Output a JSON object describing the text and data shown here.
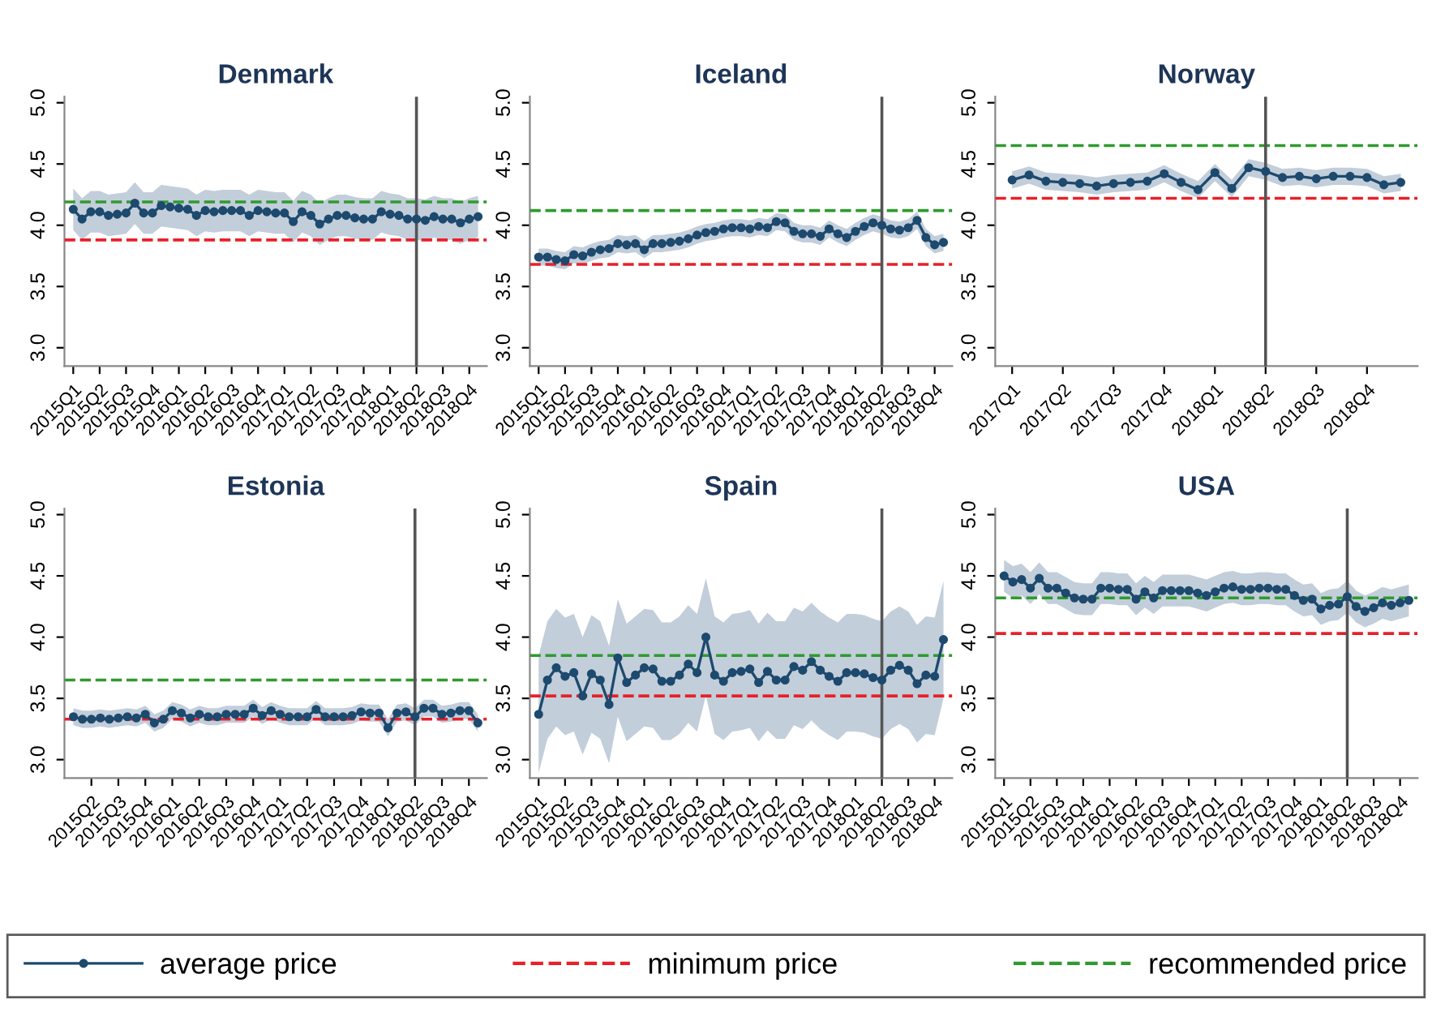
{
  "chart_data": [
    {
      "type": "line",
      "title": "Denmark",
      "marker": "circle",
      "line_style": "solid",
      "legend": "bottom",
      "ylim": [
        2.85,
        5.05
      ],
      "categories": [
        "2015Q1",
        null,
        null,
        "2015Q2",
        null,
        null,
        "2015Q3",
        null,
        null,
        "2015Q4",
        null,
        null,
        "2016Q1",
        null,
        null,
        "2016Q2",
        null,
        null,
        "2016Q3",
        null,
        null,
        "2016Q4",
        null,
        null,
        "2017Q1",
        null,
        null,
        "2017Q2",
        null,
        null,
        "2017Q3",
        null,
        null,
        "2017Q4",
        null,
        null,
        "2018Q1",
        null,
        null,
        "2018Q2",
        null,
        null,
        "2018Q3",
        null,
        null,
        "2018Q4",
        null
      ],
      "yticks": [
        {
          "value": 3,
          "label": "3.0"
        },
        {
          "value": 3.5,
          "label": "3.5"
        },
        {
          "value": 4,
          "label": "4.0"
        },
        {
          "value": 4.5,
          "label": "4.5"
        },
        {
          "value": 5,
          "label": "5.0"
        }
      ],
      "ref_lines": [
        {
          "axis": "y",
          "value": 3.88,
          "label": "minimum price",
          "color": "#e8202a",
          "line_style": "dashed"
        },
        {
          "axis": "y",
          "value": 4.19,
          "label": "recommended price",
          "color": "#2f9a2f",
          "line_style": "dashed"
        },
        {
          "axis": "x",
          "value": "2018Q2",
          "color": "#555555",
          "line_style": "solid"
        }
      ],
      "series": [
        {
          "name": "average price",
          "color": "#1d4a6e",
          "values": [
            4.13,
            4.05,
            4.11,
            4.11,
            4.08,
            4.09,
            4.1,
            4.18,
            4.1,
            4.1,
            4.16,
            4.15,
            4.14,
            4.13,
            4.08,
            4.12,
            4.11,
            4.12,
            4.12,
            4.12,
            4.08,
            4.12,
            4.11,
            4.1,
            4.1,
            4.03,
            4.11,
            4.08,
            4.01,
            4.05,
            4.08,
            4.08,
            4.06,
            4.05,
            4.05,
            4.11,
            4.09,
            4.08,
            4.05,
            4.05,
            4.04,
            4.07,
            4.05,
            4.05,
            4.02,
            4.05,
            4.07
          ],
          "lower": [
            3.96,
            3.88,
            3.94,
            3.94,
            3.91,
            3.92,
            3.93,
            4.01,
            3.93,
            3.93,
            3.99,
            3.98,
            3.97,
            3.96,
            3.91,
            3.95,
            3.94,
            3.95,
            3.95,
            3.95,
            3.91,
            3.95,
            3.94,
            3.93,
            3.93,
            3.86,
            3.94,
            3.91,
            3.84,
            3.88,
            3.91,
            3.91,
            3.89,
            3.88,
            3.88,
            3.94,
            3.92,
            3.91,
            3.88,
            3.88,
            3.87,
            3.9,
            3.88,
            3.88,
            3.85,
            3.88,
            3.9
          ],
          "upper": [
            4.3,
            4.22,
            4.28,
            4.28,
            4.25,
            4.26,
            4.27,
            4.35,
            4.27,
            4.27,
            4.33,
            4.32,
            4.31,
            4.3,
            4.25,
            4.29,
            4.28,
            4.29,
            4.29,
            4.29,
            4.25,
            4.29,
            4.28,
            4.27,
            4.27,
            4.2,
            4.28,
            4.25,
            4.18,
            4.22,
            4.25,
            4.25,
            4.23,
            4.22,
            4.22,
            4.28,
            4.26,
            4.25,
            4.22,
            4.22,
            4.21,
            4.24,
            4.22,
            4.22,
            4.19,
            4.22,
            4.24
          ]
        }
      ]
    },
    {
      "type": "line",
      "title": "Iceland",
      "marker": "circle",
      "line_style": "solid",
      "ylim": [
        2.85,
        5.05
      ],
      "categories": [
        "2015Q1",
        null,
        null,
        "2015Q2",
        null,
        null,
        "2015Q3",
        null,
        null,
        "2015Q4",
        null,
        null,
        "2016Q1",
        null,
        null,
        "2016Q2",
        null,
        null,
        "2016Q3",
        null,
        null,
        "2016Q4",
        null,
        null,
        "2017Q1",
        null,
        null,
        "2017Q2",
        null,
        null,
        "2017Q3",
        null,
        null,
        "2017Q4",
        null,
        null,
        "2018Q1",
        null,
        null,
        "2018Q2",
        null,
        null,
        "2018Q3",
        null,
        null,
        "2018Q4",
        null
      ],
      "yticks": [
        {
          "value": 3,
          "label": "3.0"
        },
        {
          "value": 3.5,
          "label": "3.5"
        },
        {
          "value": 4,
          "label": "4.0"
        },
        {
          "value": 4.5,
          "label": "4.5"
        },
        {
          "value": 5,
          "label": "5.0"
        }
      ],
      "ref_lines": [
        {
          "axis": "y",
          "value": 3.68,
          "color": "#e8202a",
          "line_style": "dashed"
        },
        {
          "axis": "y",
          "value": 4.12,
          "color": "#2f9a2f",
          "line_style": "dashed"
        },
        {
          "axis": "x",
          "value": "2018Q2",
          "color": "#555555",
          "line_style": "solid"
        }
      ],
      "series": [
        {
          "color": "#1d4a6e",
          "values": [
            3.74,
            3.74,
            3.72,
            3.71,
            3.76,
            3.75,
            3.78,
            3.8,
            3.81,
            3.85,
            3.84,
            3.85,
            3.8,
            3.85,
            3.85,
            3.86,
            3.87,
            3.89,
            3.92,
            3.94,
            3.95,
            3.97,
            3.98,
            3.98,
            3.97,
            3.99,
            3.98,
            4.03,
            4.02,
            3.95,
            3.93,
            3.93,
            3.91,
            3.97,
            3.93,
            3.9,
            3.95,
            3.99,
            4.02,
            4.0,
            3.97,
            3.96,
            3.98,
            4.04,
            3.9,
            3.84,
            3.86
          ],
          "lower": [
            3.67,
            3.67,
            3.65,
            3.64,
            3.69,
            3.68,
            3.71,
            3.73,
            3.74,
            3.78,
            3.77,
            3.78,
            3.73,
            3.78,
            3.78,
            3.79,
            3.8,
            3.82,
            3.85,
            3.87,
            3.88,
            3.9,
            3.91,
            3.91,
            3.9,
            3.92,
            3.91,
            3.96,
            3.95,
            3.88,
            3.86,
            3.86,
            3.84,
            3.9,
            3.86,
            3.83,
            3.88,
            3.92,
            3.95,
            3.93,
            3.9,
            3.89,
            3.91,
            3.97,
            3.83,
            3.77,
            3.79
          ],
          "upper": [
            3.81,
            3.81,
            3.79,
            3.78,
            3.83,
            3.82,
            3.85,
            3.87,
            3.88,
            3.92,
            3.91,
            3.92,
            3.87,
            3.92,
            3.92,
            3.93,
            3.94,
            3.96,
            3.99,
            4.01,
            4.02,
            4.04,
            4.05,
            4.05,
            4.04,
            4.06,
            4.05,
            4.1,
            4.09,
            4.02,
            4.0,
            4.0,
            3.98,
            4.04,
            4.0,
            3.97,
            4.02,
            4.06,
            4.09,
            4.07,
            4.04,
            4.03,
            4.05,
            4.11,
            3.97,
            3.91,
            3.93
          ]
        }
      ]
    },
    {
      "type": "line",
      "title": "Norway",
      "marker": "circle",
      "line_style": "solid",
      "ylim": [
        2.85,
        5.05
      ],
      "categories": [
        "2017Q1",
        null,
        null,
        "2017Q2",
        null,
        null,
        "2017Q3",
        null,
        null,
        "2017Q4",
        null,
        null,
        "2018Q1",
        null,
        null,
        "2018Q2",
        null,
        null,
        "2018Q3",
        null,
        null,
        "2018Q4",
        null,
        null
      ],
      "yticks": [
        {
          "value": 3,
          "label": "3.0"
        },
        {
          "value": 3.5,
          "label": "3.5"
        },
        {
          "value": 4,
          "label": "4.0"
        },
        {
          "value": 4.5,
          "label": "4.5"
        },
        {
          "value": 5,
          "label": "5.0"
        }
      ],
      "ref_lines": [
        {
          "axis": "y",
          "value": 4.22,
          "color": "#e8202a",
          "line_style": "dashed"
        },
        {
          "axis": "y",
          "value": 4.65,
          "color": "#2f9a2f",
          "line_style": "dashed"
        },
        {
          "axis": "x",
          "value": "2018Q2",
          "color": "#555555",
          "line_style": "solid"
        }
      ],
      "series": [
        {
          "color": "#1d4a6e",
          "values": [
            4.37,
            4.41,
            4.36,
            4.35,
            4.34,
            4.32,
            4.34,
            4.35,
            4.36,
            4.42,
            4.35,
            4.29,
            4.43,
            4.3,
            4.47,
            4.44,
            4.39,
            4.4,
            4.38,
            4.4,
            4.4,
            4.39,
            4.33,
            4.35
          ],
          "lower": [
            4.3,
            4.34,
            4.29,
            4.28,
            4.27,
            4.25,
            4.27,
            4.28,
            4.29,
            4.35,
            4.28,
            4.22,
            4.36,
            4.23,
            4.4,
            4.37,
            4.32,
            4.33,
            4.31,
            4.33,
            4.33,
            4.32,
            4.26,
            4.28
          ],
          "upper": [
            4.44,
            4.48,
            4.43,
            4.42,
            4.41,
            4.39,
            4.41,
            4.42,
            4.43,
            4.49,
            4.42,
            4.36,
            4.5,
            4.37,
            4.54,
            4.51,
            4.46,
            4.47,
            4.45,
            4.47,
            4.47,
            4.46,
            4.4,
            4.42
          ]
        }
      ]
    },
    {
      "type": "line",
      "title": "Estonia",
      "marker": "circle",
      "line_style": "solid",
      "ylim": [
        2.85,
        5.05
      ],
      "categories": [
        null,
        null,
        "2015Q2",
        null,
        null,
        "2015Q3",
        null,
        null,
        "2015Q4",
        null,
        null,
        "2016Q1",
        null,
        null,
        "2016Q2",
        null,
        null,
        "2016Q3",
        null,
        null,
        "2016Q4",
        null,
        null,
        "2017Q1",
        null,
        null,
        "2017Q2",
        null,
        null,
        "2017Q3",
        null,
        null,
        "2017Q4",
        null,
        null,
        "2018Q1",
        null,
        null,
        "2018Q2",
        null,
        null,
        "2018Q3",
        null,
        null,
        "2018Q4",
        null
      ],
      "yticks": [
        {
          "value": 3,
          "label": "3.0"
        },
        {
          "value": 3.5,
          "label": "3.5"
        },
        {
          "value": 4,
          "label": "4.0"
        },
        {
          "value": 4.5,
          "label": "4.5"
        },
        {
          "value": 5,
          "label": "5.0"
        }
      ],
      "ref_lines": [
        {
          "axis": "y",
          "value": 3.33,
          "color": "#e8202a",
          "line_style": "dashed"
        },
        {
          "axis": "y",
          "value": 3.65,
          "color": "#2f9a2f",
          "line_style": "dashed"
        },
        {
          "axis": "x",
          "value": "2018Q2",
          "color": "#555555",
          "line_style": "solid"
        }
      ],
      "series": [
        {
          "color": "#1d4a6e",
          "values": [
            3.35,
            3.33,
            3.33,
            3.34,
            3.33,
            3.34,
            3.35,
            3.34,
            3.37,
            3.3,
            3.33,
            3.4,
            3.38,
            3.34,
            3.37,
            3.35,
            3.35,
            3.37,
            3.37,
            3.37,
            3.42,
            3.36,
            3.4,
            3.37,
            3.35,
            3.35,
            3.35,
            3.41,
            3.35,
            3.35,
            3.35,
            3.36,
            3.39,
            3.38,
            3.38,
            3.26,
            3.38,
            3.39,
            3.35,
            3.42,
            3.42,
            3.37,
            3.38,
            3.4,
            3.4,
            3.3
          ],
          "lower": [
            3.28,
            3.26,
            3.26,
            3.27,
            3.26,
            3.27,
            3.28,
            3.27,
            3.3,
            3.23,
            3.26,
            3.33,
            3.31,
            3.27,
            3.3,
            3.28,
            3.28,
            3.3,
            3.3,
            3.3,
            3.35,
            3.29,
            3.33,
            3.3,
            3.28,
            3.28,
            3.28,
            3.34,
            3.28,
            3.28,
            3.28,
            3.29,
            3.32,
            3.31,
            3.31,
            3.19,
            3.31,
            3.32,
            3.28,
            3.35,
            3.35,
            3.3,
            3.31,
            3.33,
            3.33,
            3.23
          ],
          "upper": [
            3.42,
            3.4,
            3.4,
            3.41,
            3.4,
            3.41,
            3.42,
            3.41,
            3.44,
            3.37,
            3.4,
            3.47,
            3.45,
            3.41,
            3.44,
            3.42,
            3.42,
            3.44,
            3.44,
            3.44,
            3.49,
            3.43,
            3.47,
            3.44,
            3.42,
            3.42,
            3.42,
            3.48,
            3.42,
            3.42,
            3.42,
            3.43,
            3.46,
            3.45,
            3.45,
            3.33,
            3.45,
            3.46,
            3.42,
            3.49,
            3.49,
            3.44,
            3.45,
            3.47,
            3.47,
            3.37
          ]
        }
      ]
    },
    {
      "type": "line",
      "title": "Spain",
      "marker": "circle",
      "line_style": "solid",
      "ylim": [
        2.85,
        5.05
      ],
      "categories": [
        "2015Q1",
        null,
        null,
        "2015Q2",
        null,
        null,
        "2015Q3",
        null,
        null,
        "2015Q4",
        null,
        null,
        "2016Q1",
        null,
        null,
        "2016Q2",
        null,
        null,
        "2016Q3",
        null,
        null,
        "2016Q4",
        null,
        null,
        "2017Q1",
        null,
        null,
        "2017Q2",
        null,
        null,
        "2017Q3",
        null,
        null,
        "2017Q4",
        null,
        null,
        "2018Q1",
        null,
        null,
        "2018Q2",
        null,
        null,
        "2018Q3",
        null,
        null,
        "2018Q4",
        null
      ],
      "yticks": [
        {
          "value": 3,
          "label": "3.0"
        },
        {
          "value": 3.5,
          "label": "3.5"
        },
        {
          "value": 4,
          "label": "4.0"
        },
        {
          "value": 4.5,
          "label": "4.5"
        },
        {
          "value": 5,
          "label": "5.0"
        }
      ],
      "ref_lines": [
        {
          "axis": "y",
          "value": 3.52,
          "color": "#e8202a",
          "line_style": "dashed"
        },
        {
          "axis": "y",
          "value": 3.85,
          "color": "#2f9a2f",
          "line_style": "dashed"
        },
        {
          "axis": "x",
          "value": "2018Q2",
          "color": "#555555",
          "line_style": "solid"
        }
      ],
      "series": [
        {
          "color": "#1d4a6e",
          "values": [
            3.37,
            3.65,
            3.75,
            3.68,
            3.71,
            3.52,
            3.7,
            3.65,
            3.45,
            3.83,
            3.63,
            3.69,
            3.75,
            3.74,
            3.64,
            3.64,
            3.69,
            3.78,
            3.71,
            4.0,
            3.69,
            3.64,
            3.71,
            3.72,
            3.74,
            3.63,
            3.72,
            3.65,
            3.65,
            3.76,
            3.73,
            3.8,
            3.73,
            3.68,
            3.64,
            3.71,
            3.71,
            3.7,
            3.67,
            3.65,
            3.73,
            3.77,
            3.73,
            3.62,
            3.69,
            3.68,
            3.98
          ],
          "lower": [
            2.89,
            3.17,
            3.27,
            3.2,
            3.23,
            3.04,
            3.22,
            3.17,
            2.97,
            3.35,
            3.15,
            3.21,
            3.27,
            3.26,
            3.16,
            3.16,
            3.21,
            3.3,
            3.23,
            3.52,
            3.21,
            3.16,
            3.23,
            3.24,
            3.26,
            3.15,
            3.24,
            3.17,
            3.17,
            3.28,
            3.25,
            3.32,
            3.25,
            3.2,
            3.16,
            3.23,
            3.23,
            3.22,
            3.19,
            3.17,
            3.25,
            3.29,
            3.25,
            3.14,
            3.21,
            3.2,
            3.5
          ],
          "upper": [
            3.85,
            4.13,
            4.23,
            4.16,
            4.19,
            4.0,
            4.18,
            4.13,
            3.93,
            4.31,
            4.11,
            4.17,
            4.23,
            4.22,
            4.12,
            4.12,
            4.17,
            4.26,
            4.19,
            4.48,
            4.17,
            4.12,
            4.19,
            4.2,
            4.22,
            4.11,
            4.2,
            4.13,
            4.13,
            4.24,
            4.21,
            4.28,
            4.21,
            4.16,
            4.12,
            4.19,
            4.19,
            4.18,
            4.15,
            4.13,
            4.21,
            4.25,
            4.21,
            4.1,
            4.17,
            4.16,
            4.46
          ]
        }
      ]
    },
    {
      "type": "line",
      "title": "USA",
      "marker": "circle",
      "line_style": "solid",
      "ylim": [
        2.85,
        5.05
      ],
      "categories": [
        "2015Q1",
        null,
        null,
        "2015Q2",
        null,
        null,
        "2015Q3",
        null,
        null,
        "2015Q4",
        null,
        null,
        "2016Q1",
        null,
        null,
        "2016Q2",
        null,
        null,
        "2016Q3",
        null,
        null,
        "2016Q4",
        null,
        null,
        "2017Q1",
        null,
        null,
        "2017Q2",
        null,
        null,
        "2017Q3",
        null,
        null,
        "2017Q4",
        null,
        null,
        "2018Q1",
        null,
        null,
        "2018Q2",
        null,
        null,
        "2018Q3",
        null,
        null,
        "2018Q4",
        null
      ],
      "yticks": [
        {
          "value": 3,
          "label": "3.0"
        },
        {
          "value": 3.5,
          "label": "3.5"
        },
        {
          "value": 4,
          "label": "4.0"
        },
        {
          "value": 4.5,
          "label": "4.5"
        },
        {
          "value": 5,
          "label": "5.0"
        }
      ],
      "ref_lines": [
        {
          "axis": "y",
          "value": 4.03,
          "color": "#e8202a",
          "line_style": "dashed"
        },
        {
          "axis": "y",
          "value": 4.32,
          "color": "#2f9a2f",
          "line_style": "dashed"
        },
        {
          "axis": "x",
          "value": "2018Q2",
          "color": "#555555",
          "line_style": "solid"
        }
      ],
      "series": [
        {
          "color": "#1d4a6e",
          "values": [
            4.5,
            4.45,
            4.47,
            4.4,
            4.48,
            4.4,
            4.4,
            4.36,
            4.32,
            4.31,
            4.31,
            4.4,
            4.4,
            4.39,
            4.39,
            4.31,
            4.37,
            4.32,
            4.38,
            4.38,
            4.38,
            4.38,
            4.36,
            4.34,
            4.37,
            4.4,
            4.41,
            4.39,
            4.39,
            4.4,
            4.4,
            4.39,
            4.39,
            4.34,
            4.3,
            4.31,
            4.23,
            4.26,
            4.27,
            4.33,
            4.25,
            4.21,
            4.24,
            4.28,
            4.26,
            4.28,
            4.3
          ],
          "lower": [
            4.37,
            4.32,
            4.34,
            4.27,
            4.35,
            4.27,
            4.27,
            4.23,
            4.19,
            4.18,
            4.18,
            4.27,
            4.27,
            4.26,
            4.26,
            4.18,
            4.24,
            4.19,
            4.25,
            4.25,
            4.25,
            4.25,
            4.23,
            4.21,
            4.24,
            4.27,
            4.28,
            4.26,
            4.26,
            4.27,
            4.27,
            4.26,
            4.26,
            4.21,
            4.17,
            4.18,
            4.1,
            4.13,
            4.14,
            4.2,
            4.12,
            4.08,
            4.11,
            4.15,
            4.13,
            4.15,
            4.17
          ],
          "upper": [
            4.63,
            4.58,
            4.6,
            4.53,
            4.61,
            4.53,
            4.53,
            4.49,
            4.45,
            4.44,
            4.44,
            4.53,
            4.53,
            4.52,
            4.52,
            4.44,
            4.5,
            4.45,
            4.51,
            4.51,
            4.51,
            4.51,
            4.49,
            4.47,
            4.5,
            4.53,
            4.54,
            4.52,
            4.52,
            4.53,
            4.53,
            4.52,
            4.52,
            4.47,
            4.43,
            4.44,
            4.36,
            4.39,
            4.4,
            4.46,
            4.38,
            4.34,
            4.37,
            4.41,
            4.39,
            4.41,
            4.43
          ]
        }
      ]
    }
  ]
}
